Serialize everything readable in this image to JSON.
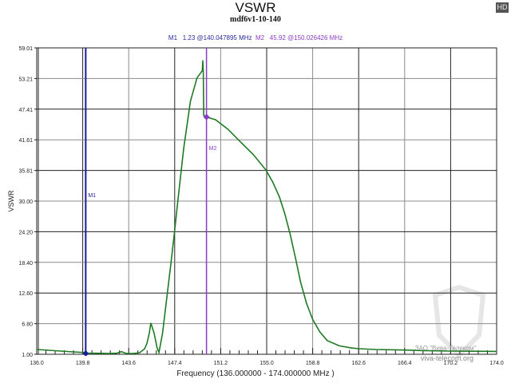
{
  "badge": "HD",
  "colors": {
    "curve": "#1f7a24",
    "m1": "#1c1c9c",
    "m2": "#8a3cc8",
    "grid_dark": "#222222",
    "grid_light": "#8c8c8c"
  },
  "markers_readout": {
    "m1_label": "M1",
    "m1_text": "1.23 @140.047895 MHz",
    "m2_label": "M2",
    "m2_text": "45.92 @150.026426 MHz"
  },
  "watermark": {
    "line1": "ЗАО \"Вива-Телеком\"",
    "line2": "viva-telecom.org"
  },
  "chart_data": {
    "type": "line",
    "title": "VSWR",
    "subtitle": "mdf6v1-10-140",
    "xlabel": "Frequency (136.000000 - 174.000000 MHz )",
    "ylabel": "VSWR",
    "xlim": [
      136.0,
      174.0
    ],
    "ylim": [
      1.0,
      59.01
    ],
    "grid": true,
    "x_ticks": [
      "136.0",
      "139.8",
      "143.6",
      "147.4",
      "151.2",
      "155.0",
      "158.8",
      "162.6",
      "166.4",
      "170.2",
      "174.0"
    ],
    "y_ticks": [
      "59.01",
      "53.21",
      "47.41",
      "41.61",
      "35.81",
      "30.00",
      "24.20",
      "18.40",
      "12.60",
      "6.80",
      "1.00"
    ],
    "series": [
      {
        "x": [
          136.0,
          137.0,
          138.0,
          139.0,
          139.8,
          140.05,
          141.0,
          142.0,
          142.6,
          143.0,
          143.4,
          144.0,
          144.5,
          144.9,
          145.1,
          145.3,
          145.43,
          145.7,
          145.95,
          146.1,
          146.4,
          146.8,
          147.1,
          147.37,
          147.7,
          148.14,
          148.7,
          149.24,
          149.68,
          149.72,
          149.76,
          149.8,
          150.03,
          150.78,
          151.8,
          152.75,
          153.9,
          154.95,
          155.5,
          156.05,
          156.5,
          156.93,
          157.4,
          157.8,
          158.3,
          158.8,
          159.4,
          160.0,
          161.0,
          162.0,
          162.6,
          164.0,
          166.4,
          168.0,
          170.2,
          172.0,
          174.0
        ],
        "y": [
          1.9,
          1.75,
          1.6,
          1.45,
          1.35,
          1.23,
          1.2,
          1.15,
          1.2,
          1.5,
          1.15,
          1.15,
          1.3,
          2.0,
          3.0,
          5.0,
          6.9,
          5.0,
          2.2,
          1.35,
          5.0,
          12.7,
          18.5,
          23.8,
          30.8,
          39.9,
          48.9,
          53.3,
          54.7,
          56.6,
          54.5,
          46.2,
          45.92,
          45.4,
          43.6,
          41.4,
          38.8,
          35.85,
          33.6,
          30.8,
          27.6,
          23.8,
          19.0,
          14.7,
          10.6,
          7.6,
          5.2,
          3.6,
          2.6,
          2.2,
          2.05,
          1.9,
          1.8,
          1.7,
          1.6,
          1.58,
          1.55
        ]
      }
    ],
    "markers": [
      {
        "name": "M1",
        "x": 140.047895,
        "y": 1.23
      },
      {
        "name": "M2",
        "x": 150.026426,
        "y": 45.92
      }
    ]
  }
}
